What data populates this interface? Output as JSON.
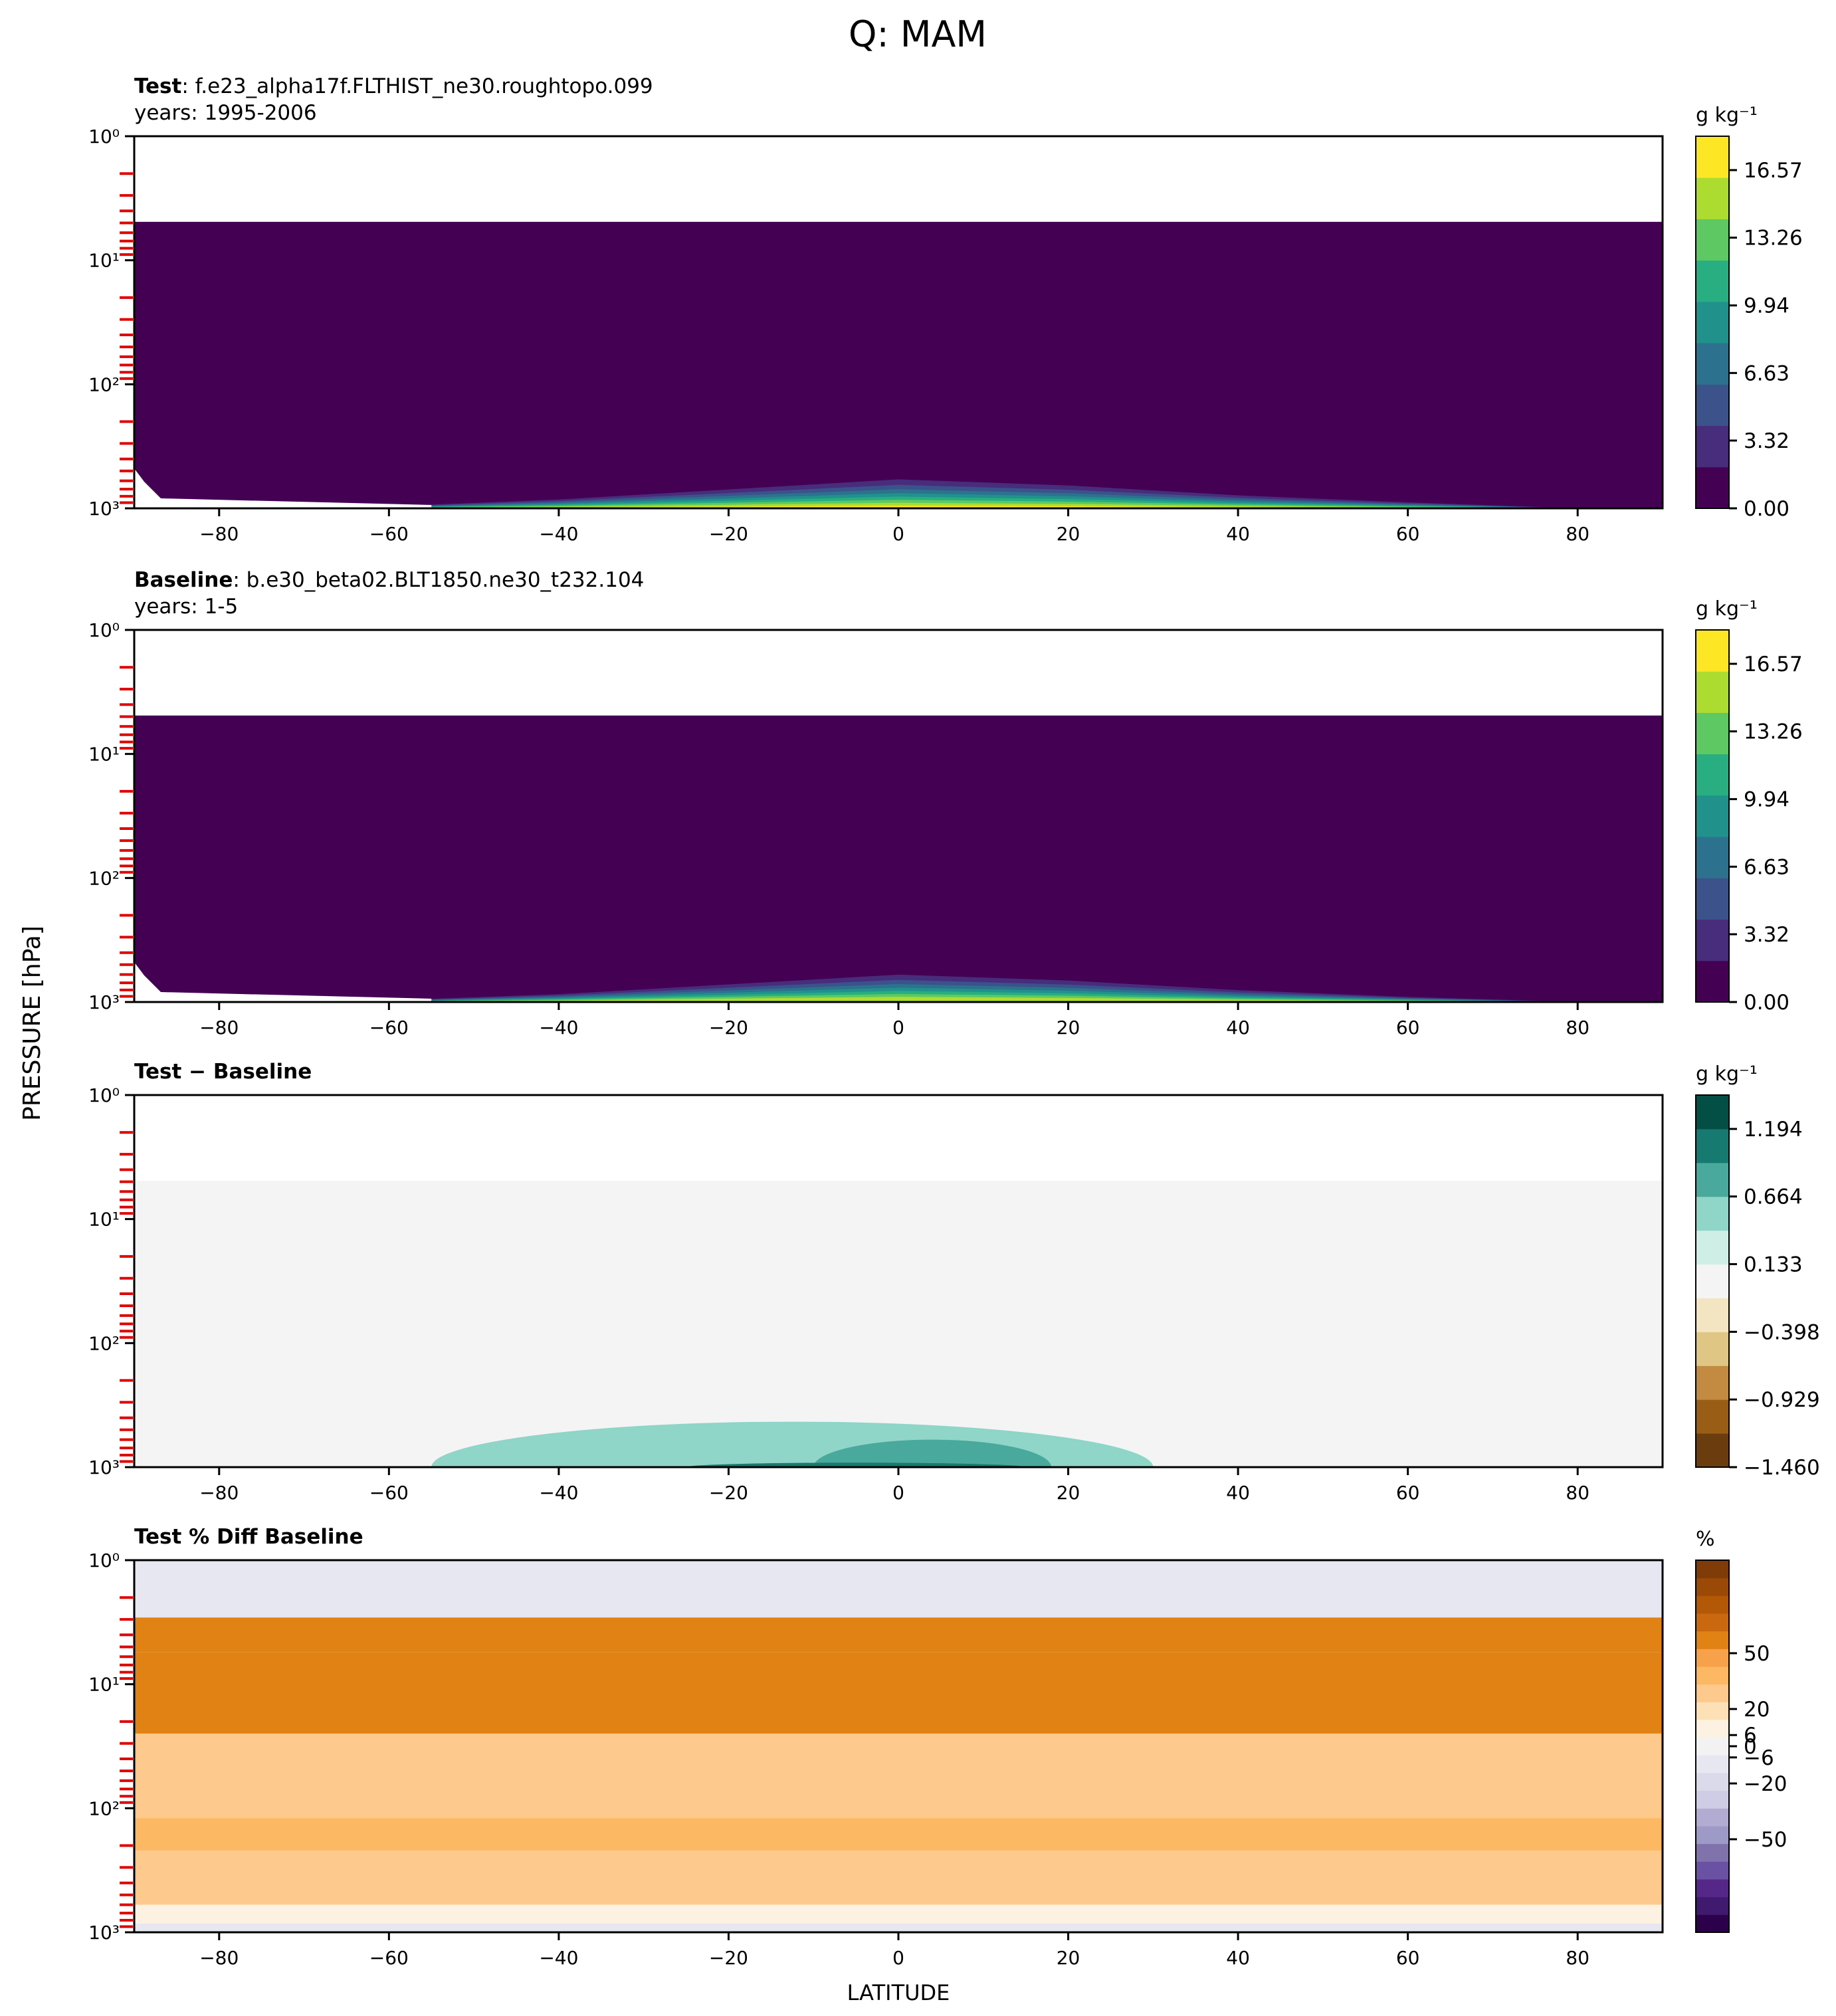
{
  "figure": {
    "title": "Q: MAM",
    "ylabel": "PRESSURE [hPa]",
    "xlabel": "LATITUDE"
  },
  "colors": {
    "viridis": [
      "#440154",
      "#472d7b",
      "#3b528b",
      "#2c728e",
      "#21918c",
      "#28ae80",
      "#5ec962",
      "#addc30",
      "#fde725"
    ],
    "diff": [
      "#6b3d0e",
      "#9a5d16",
      "#c28b41",
      "#e0c684",
      "#f3e4c2",
      "#f4f4f4",
      "#cfeee6",
      "#8fd5c8",
      "#48a99c",
      "#177a70",
      "#044f45"
    ],
    "pct": [
      "#2d004b",
      "#3f1a6e",
      "#542788",
      "#6a51a3",
      "#8073ac",
      "#9e9ac8",
      "#b2abd2",
      "#cfcde6",
      "#dadaeb",
      "#e7e7f2",
      "#f2f2f2",
      "#fdf2e1",
      "#fee0b6",
      "#fdc98c",
      "#fdb863",
      "#f7a24a",
      "#e08214",
      "#c9680f",
      "#b35806",
      "#9a4a06",
      "#7f3b08"
    ]
  },
  "chart_data": [
    {
      "type": "heatmap",
      "title_bold": "Test",
      "title_rest": ": f.e23_alpha17f.FLTHIST_ne30.roughtopo.099",
      "years": "years: 1995-2006",
      "units": "g kg⁻¹",
      "colormap": "viridis",
      "x_range": [
        -90,
        90
      ],
      "x_ticks": [
        -80,
        -60,
        -40,
        -20,
        0,
        20,
        40,
        60,
        80
      ],
      "x_tick_labels": [
        "−80",
        "−60",
        "−40",
        "−20",
        "0",
        "20",
        "40",
        "60",
        "80"
      ],
      "y_scale": "log",
      "y_range_hpa": [
        1,
        1000
      ],
      "y_ticks": [
        "10⁰",
        "10¹",
        "10²",
        "10³"
      ],
      "colorbar_range": [
        0,
        18.23
      ],
      "colorbar_ticks": [
        {
          "value": 0,
          "label": "0.00"
        },
        {
          "value": 3.32,
          "label": "3.32"
        },
        {
          "value": 6.63,
          "label": "6.63"
        },
        {
          "value": 9.94,
          "label": "9.94"
        },
        {
          "value": 13.26,
          "label": "13.26"
        },
        {
          "value": 16.57,
          "label": "16.57"
        }
      ],
      "field": {
        "data_top_hpa": 4.9,
        "background_level": 0,
        "max_value_near_surface": 18,
        "moist_layer_top_hpa": [
          {
            "lat": -90,
            "p": 1000
          },
          {
            "lat": -60,
            "p": 950
          },
          {
            "lat": -40,
            "p": 800
          },
          {
            "lat": -20,
            "p": 620
          },
          {
            "lat": 0,
            "p": 480
          },
          {
            "lat": 20,
            "p": 560
          },
          {
            "lat": 40,
            "p": 720
          },
          {
            "lat": 60,
            "p": 860
          },
          {
            "lat": 80,
            "p": 1000
          }
        ],
        "surface_gap_lat_extent": [
          -90,
          -55
        ]
      }
    },
    {
      "type": "heatmap",
      "title_bold": "Baseline",
      "title_rest": ": b.e30_beta02.BLT1850.ne30_t232.104",
      "years": "years: 1-5",
      "units": "g kg⁻¹",
      "colormap": "viridis",
      "x_range": [
        -90,
        90
      ],
      "x_ticks": [
        -80,
        -60,
        -40,
        -20,
        0,
        20,
        40,
        60,
        80
      ],
      "x_tick_labels": [
        "−80",
        "−60",
        "−40",
        "−20",
        "0",
        "20",
        "40",
        "60",
        "80"
      ],
      "y_scale": "log",
      "y_range_hpa": [
        1,
        1000
      ],
      "y_ticks": [
        "10⁰",
        "10¹",
        "10²",
        "10³"
      ],
      "colorbar_range": [
        0,
        18.23
      ],
      "colorbar_ticks": [
        {
          "value": 0,
          "label": "0.00"
        },
        {
          "value": 3.32,
          "label": "3.32"
        },
        {
          "value": 6.63,
          "label": "6.63"
        },
        {
          "value": 9.94,
          "label": "9.94"
        },
        {
          "value": 13.26,
          "label": "13.26"
        },
        {
          "value": 16.57,
          "label": "16.57"
        }
      ],
      "field": {
        "data_top_hpa": 4.9,
        "background_level": 0,
        "max_value_near_surface": 17,
        "moist_layer_top_hpa": [
          {
            "lat": -90,
            "p": 1000
          },
          {
            "lat": -60,
            "p": 960
          },
          {
            "lat": -40,
            "p": 820
          },
          {
            "lat": -20,
            "p": 640
          },
          {
            "lat": 0,
            "p": 500
          },
          {
            "lat": 20,
            "p": 580
          },
          {
            "lat": 40,
            "p": 740
          },
          {
            "lat": 60,
            "p": 880
          },
          {
            "lat": 80,
            "p": 1000
          }
        ],
        "surface_gap_lat_extent": [
          -90,
          -55
        ]
      }
    },
    {
      "type": "heatmap",
      "title_bold": "Test − Baseline",
      "title_rest": "",
      "years": "",
      "units": "g kg⁻¹",
      "colormap": "diff",
      "x_range": [
        -90,
        90
      ],
      "x_ticks": [
        -80,
        -60,
        -40,
        -20,
        0,
        20,
        40,
        60,
        80
      ],
      "x_tick_labels": [
        "−80",
        "−60",
        "−40",
        "−20",
        "0",
        "20",
        "40",
        "60",
        "80"
      ],
      "y_scale": "log",
      "y_range_hpa": [
        1,
        1000
      ],
      "y_ticks": [
        "10⁰",
        "10¹",
        "10²",
        "10³"
      ],
      "colorbar_range": [
        -1.46,
        1.46
      ],
      "colorbar_ticks": [
        {
          "value": -1.46,
          "label": "−1.460"
        },
        {
          "value": -0.929,
          "label": "−0.929"
        },
        {
          "value": -0.398,
          "label": "−0.398"
        },
        {
          "value": 0.133,
          "label": "0.133"
        },
        {
          "value": 0.664,
          "label": "0.664"
        },
        {
          "value": 1.194,
          "label": "1.194"
        }
      ],
      "field": {
        "data_top_hpa": 4.9,
        "background_value": 0.0,
        "positive_anomalies": [
          {
            "lat_range": [
              -55,
              30
            ],
            "top_hpa": 430,
            "value": 0.2
          },
          {
            "lat_range": [
              -40,
              20
            ],
            "top_hpa": 780,
            "value": 0.5
          },
          {
            "lat_range": [
              -10,
              18
            ],
            "top_hpa": 600,
            "value": 0.6
          },
          {
            "lat_range": [
              -25,
              15
            ],
            "top_hpa": 920,
            "value": 1.0
          }
        ]
      }
    },
    {
      "type": "heatmap",
      "title_bold": "Test % Diff Baseline",
      "title_rest": "",
      "years": "",
      "units": "%",
      "colormap": "pct",
      "x_range": [
        -90,
        90
      ],
      "x_ticks": [
        -80,
        -60,
        -40,
        -20,
        0,
        20,
        40,
        60,
        80
      ],
      "x_tick_labels": [
        "−80",
        "−60",
        "−40",
        "−20",
        "0",
        "20",
        "40",
        "60",
        "80"
      ],
      "y_scale": "log",
      "y_range_hpa": [
        1,
        1000
      ],
      "y_ticks": [
        "10⁰",
        "10¹",
        "10²",
        "10³"
      ],
      "colorbar_range": [
        -100,
        100
      ],
      "colorbar_ticks": [
        {
          "value": -50,
          "label": "−50"
        },
        {
          "value": -20,
          "label": "−20"
        },
        {
          "value": -6,
          "label": "−6"
        },
        {
          "value": 0,
          "label": "0"
        },
        {
          "value": 6,
          "label": "6"
        },
        {
          "value": 20,
          "label": "20"
        },
        {
          "value": 50,
          "label": "50"
        }
      ],
      "field": {
        "data_top_hpa": 2.9,
        "layers": [
          {
            "p_top": 2.9,
            "p_bottom": 5.5,
            "value": 40
          },
          {
            "p_top": 5.5,
            "p_bottom": 25,
            "value": 35
          },
          {
            "p_top": 25,
            "p_bottom": 120,
            "value": 20
          },
          {
            "p_top": 120,
            "p_bottom": 220,
            "value": 25
          },
          {
            "p_top": 220,
            "p_bottom": 600,
            "value": 20
          },
          {
            "p_top": 600,
            "p_bottom": 850,
            "value": 8
          },
          {
            "p_top": 850,
            "p_bottom": 1000,
            "value": -4
          }
        ]
      }
    }
  ]
}
